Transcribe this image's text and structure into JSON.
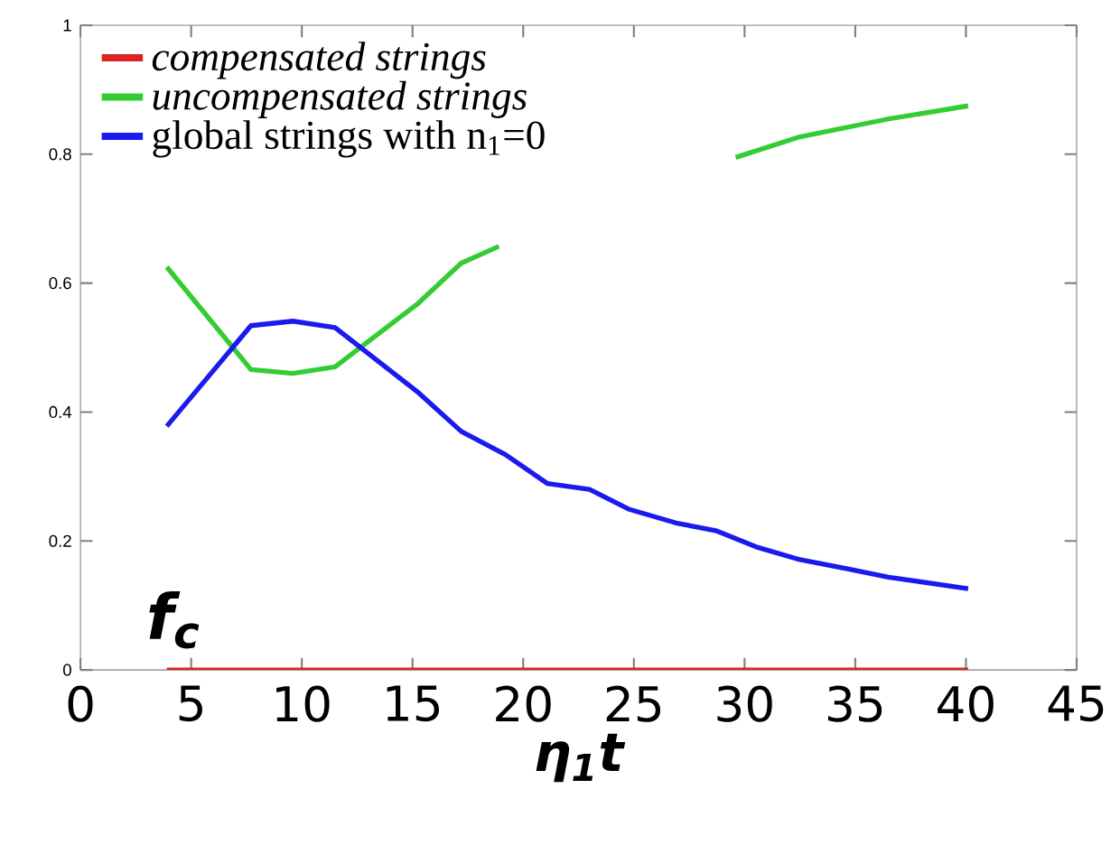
{
  "chart_data": {
    "type": "line",
    "xlabel": "η$_{1}$t",
    "ylabel": "f$_{c}$",
    "xlim": [
      0,
      45
    ],
    "ylim": [
      0,
      1
    ],
    "xticks": [
      0,
      5,
      10,
      15,
      20,
      25,
      30,
      35,
      40,
      45
    ],
    "yticks": [
      0,
      0.2,
      0.4,
      0.6,
      0.8,
      1
    ],
    "legend": "top left",
    "marker": "none",
    "line_style": "solid",
    "series": [
      {
        "name": "compensated strings",
        "color": "#dd2222",
        "x": [
          3.9,
          40.1
        ],
        "values": [
          0,
          0
        ]
      },
      {
        "name": "uncompensated strings",
        "color": "#33cc33",
        "x": [
          3.9,
          7.7,
          9.6,
          11.5,
          15.2,
          17.2,
          18.9,
          24,
          29.6,
          32.5,
          36.4,
          40.1
        ],
        "values": [
          0.625,
          0.466,
          0.46,
          0.47,
          0.567,
          0.631,
          0.657,
          null,
          0.795,
          0.827,
          0.854,
          0.875
        ]
      },
      {
        "name": "global strings with n$_{1}$=0",
        "color": "#1a1aee",
        "x": [
          3.9,
          7.7,
          9.6,
          11.5,
          15.2,
          17.2,
          19.2,
          21.1,
          23.0,
          24.8,
          26.9,
          28.7,
          30.6,
          32.5,
          34.6,
          36.5,
          40.1
        ],
        "values": [
          0.378,
          0.534,
          0.541,
          0.531,
          0.432,
          0.37,
          0.334,
          0.289,
          0.28,
          0.249,
          0.228,
          0.216,
          0.19,
          0.171,
          0.157,
          0.144,
          0.126
        ]
      }
    ]
  }
}
